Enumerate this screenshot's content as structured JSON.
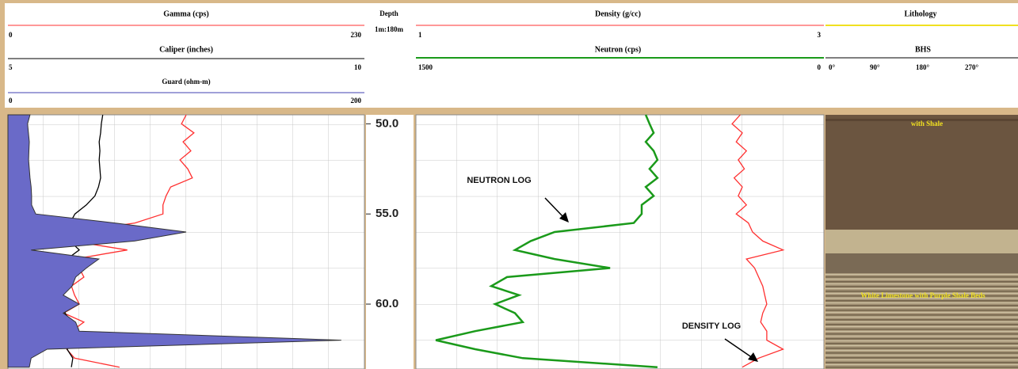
{
  "chart_data": [
    {
      "type": "line",
      "ylim": [
        49.5,
        63.6
      ],
      "y": [
        49.5,
        50,
        50.5,
        51,
        51.5,
        52,
        52.5,
        53,
        53.5,
        54,
        54.5,
        55,
        55.5,
        56,
        56.5,
        57,
        57.5,
        58,
        58.5,
        59,
        59.5,
        60,
        60.5,
        61,
        61.5,
        62,
        62.5,
        63,
        63.5
      ],
      "series": [
        {
          "name": "Gamma (cps)",
          "color": "#ff3030",
          "xlim": [
            0,
            230
          ],
          "values": [
            115,
            112,
            120,
            113,
            118,
            111,
            116,
            119,
            105,
            102,
            100,
            100,
            82,
            43,
            41,
            77,
            43,
            46,
            49,
            41,
            43,
            46,
            36,
            49,
            41,
            46,
            38,
            43,
            72
          ]
        },
        {
          "name": "Caliper (inches)",
          "color": "#000000",
          "xlim": [
            5,
            10
          ],
          "values": [
            6.33,
            6.31,
            6.3,
            6.28,
            6.29,
            6.28,
            6.29,
            6.3,
            6.27,
            6.22,
            6.1,
            5.94,
            5.87,
            5.91,
            5.87,
            6.0,
            5.83,
            5.88,
            5.78,
            5.87,
            5.76,
            5.83,
            5.8,
            5.89,
            5.87,
            5.94,
            5.83,
            5.91,
            5.89
          ]
        },
        {
          "name": "Guard (ohm-m)",
          "color": "#4040b0",
          "fill": "#6a6ac8",
          "xlim": [
            0,
            200
          ],
          "values": [
            12.4,
            11,
            11.5,
            12,
            11.8,
            11.6,
            12,
            12.4,
            13,
            13.3,
            13.3,
            15.6,
            60,
            100,
            71,
            13,
            51,
            44,
            38,
            36,
            31,
            40,
            31,
            38,
            40,
            187,
            22,
            13,
            12
          ]
        }
      ]
    },
    {
      "type": "depth",
      "title": "Depth",
      "subtitle": "1m:180m",
      "ylim": [
        49.5,
        63.6
      ],
      "yticks": [
        {
          "value": 50,
          "label": "50.0"
        },
        {
          "value": 55,
          "label": "55.0"
        },
        {
          "value": 60,
          "label": "60.0"
        }
      ]
    },
    {
      "type": "line",
      "ylim": [
        49.5,
        63.6
      ],
      "y": [
        49.5,
        50,
        50.5,
        51,
        51.5,
        52,
        52.5,
        53,
        53.5,
        54,
        54.5,
        55,
        55.5,
        56,
        56.5,
        57,
        57.5,
        58,
        58.5,
        59,
        59.5,
        60,
        60.5,
        61,
        61.5,
        62,
        62.5,
        63,
        63.5
      ],
      "series": [
        {
          "name": "Density (g/cc)",
          "color": "#ff3030",
          "xlim": [
            1,
            3
          ],
          "values": [
            2.59,
            2.55,
            2.6,
            2.57,
            2.62,
            2.58,
            2.61,
            2.56,
            2.6,
            2.58,
            2.62,
            2.57,
            2.63,
            2.65,
            2.7,
            2.8,
            2.62,
            2.66,
            2.68,
            2.7,
            2.71,
            2.72,
            2.7,
            2.69,
            2.72,
            2.72,
            2.8,
            2.68,
            2.6
          ]
        },
        {
          "name": "Neutron (cps)",
          "color": "#1a9a1a",
          "xlim": [
            1500,
            0
          ],
          "values": [
            655,
            641,
            626,
            655,
            626,
            612,
            641,
            612,
            655,
            626,
            670,
            670,
            699,
            990,
            1078,
            1136,
            990,
            786,
            1165,
            1223,
            1121,
            1209,
            1136,
            1107,
            1282,
            1427,
            1282,
            1107,
            612
          ]
        }
      ],
      "annotations": [
        "NEUTRON LOG",
        "DENSITY LOG"
      ]
    }
  ],
  "lithology": {
    "title": "Lithology",
    "image_title": "BHS",
    "azimuth_labels": [
      "0°",
      "90°",
      "180°",
      "270°"
    ],
    "beds": [
      "with Shale",
      "White Limestone with Purple Shale Beds"
    ]
  }
}
